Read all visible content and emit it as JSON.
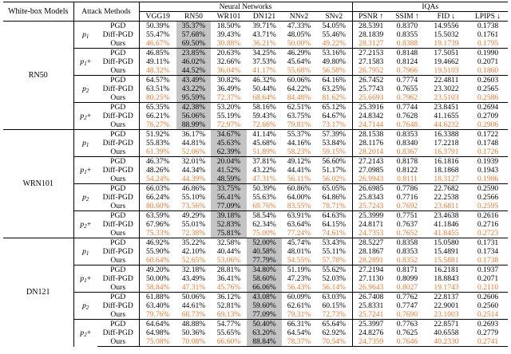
{
  "header": {
    "whitebox_label": "White-box Models",
    "attack_label": "Attack Methods",
    "nn_group": "Neural Networks",
    "iqa_group": "IQAs",
    "columns": [
      "VGG19",
      "RN50",
      "WR101",
      "DN121",
      "NNv2",
      "SNv2",
      "PSNR ↑",
      "SSIM ↑",
      "FID ↓",
      "LPIPS ↓"
    ]
  },
  "groups": [
    {
      "model": "RN50",
      "gray_col": 1,
      "blocks": [
        {
          "pset": "p",
          "sub": "1",
          "plus": "",
          "rows": [
            {
              "method": "PGD",
              "vals": [
                "50.39%",
                "35.37%",
                "18.50%",
                "39.71%",
                "47.33%",
                "54.05%",
                "28.5391",
                "0.8370",
                "14.9556",
                "0.1738"
              ],
              "orange": false
            },
            {
              "method": "Diff-PGD",
              "vals": [
                "55.47%",
                "57.68%",
                "39.43%",
                "43.71%",
                "48.05%",
                "55.46%",
                "28.1839",
                "0.8355",
                "15.5032",
                "0.1761"
              ],
              "orange": false
            },
            {
              "method": "Ours",
              "vals": [
                "46.67%",
                "69.50%",
                "30.88%",
                "36.21%",
                "50.00%",
                "49.22%",
                "28.3127",
                "0.8388",
                "19.1739",
                "0.1795"
              ],
              "orange": true
            }
          ]
        },
        {
          "pset": "p",
          "sub": "1",
          "plus": "+",
          "rows": [
            {
              "method": "PGD",
              "vals": [
                "46.85%",
                "23.85%",
                "20.63%",
                "34.25%",
                "46.29%",
                "53.16%",
                "27.2153",
                "0.8148",
                "17.5051",
                "0.1990"
              ],
              "orange": false
            },
            {
              "method": "Diff-PGD",
              "vals": [
                "49.11%",
                "46.02%",
                "32.66%",
                "37.53%",
                "45.64%",
                "49.80%",
                "27.1583",
                "0.8124",
                "19.4662",
                "0.2071"
              ],
              "orange": false
            },
            {
              "method": "Ours",
              "vals": [
                "48.32%",
                "44.52%",
                "36.04%",
                "41.17%",
                "55.68%",
                "56.58%",
                "26.7952",
                "0.7966",
                "19.5103",
                "0.1860"
              ],
              "orange": true
            }
          ]
        },
        {
          "pset": "p",
          "sub": "2",
          "plus": "",
          "rows": [
            {
              "method": "PGD",
              "vals": [
                "64.57%",
                "43.49%",
                "30.82%",
                "46.32%",
                "60.06%",
                "64.16%",
                "26.7452",
                "0.7774",
                "22.4811",
                "0.2603"
              ],
              "orange": false
            },
            {
              "method": "Diff-PGD",
              "vals": [
                "63.51%",
                "43.22%",
                "36.49%",
                "50.44%",
                "64.22%",
                "63.25%",
                "25.7743",
                "0.7655",
                "23.3022",
                "0.2565"
              ],
              "orange": false
            },
            {
              "method": "Ours",
              "vals": [
                "80.25%",
                "95.59%",
                "72.37%",
                "68.64%",
                "84.48%",
                "81.62%",
                "25.6693",
                "0.7962",
                "23.5103",
                "0.2586"
              ],
              "orange": true
            }
          ]
        },
        {
          "pset": "p",
          "sub": "2",
          "plus": "+",
          "rows": [
            {
              "method": "PGD",
              "vals": [
                "65.35%",
                "42.38%",
                "53.20%",
                "58.16%",
                "62.51%",
                "65.12%",
                "25.3916",
                "0.7744",
                "23.8451",
                "0.2694"
              ],
              "orange": false
            },
            {
              "method": "Diff-PGD",
              "vals": [
                "66.21%",
                "56.06%",
                "55.19%",
                "59.43%",
                "63.75%",
                "64.67%",
                "24.8342",
                "0.7628",
                "41.1655",
                "0.2709"
              ],
              "orange": false
            },
            {
              "method": "Ours",
              "vals": [
                "76.27%",
                "88.99%",
                "72.97%",
                "72.66%",
                "79.81%",
                "73.17%",
                "24.7144",
                "0.7648",
                "44.6232",
                "0.2906"
              ],
              "orange": true
            }
          ]
        }
      ]
    },
    {
      "model": "WRN101",
      "gray_col": 2,
      "blocks": [
        {
          "pset": "p",
          "sub": "1",
          "plus": "",
          "rows": [
            {
              "method": "PGD",
              "vals": [
                "51.92%",
                "36.17%",
                "34.67%",
                "41.14%",
                "55.37%",
                "57.39%",
                "28.1538",
                "0.8353",
                "16.3388",
                "0.1722"
              ],
              "orange": false
            },
            {
              "method": "Diff-PGD",
              "vals": [
                "55.83%",
                "44.81%",
                "45.63%",
                "45.68%",
                "44.16%",
                "53.84%",
                "28.1176",
                "0.8340",
                "17.2218",
                "0.1748"
              ],
              "orange": false
            },
            {
              "method": "Ours",
              "vals": [
                "61.39%",
                "52.06%",
                "62.39%",
                "51.89%",
                "58.23%",
                "59.15%",
                "28.2014",
                "0.8367",
                "16.3791",
                "0.1726"
              ],
              "orange": true
            }
          ]
        },
        {
          "pset": "p",
          "sub": "1",
          "plus": "+",
          "rows": [
            {
              "method": "PGD",
              "vals": [
                "46.37%",
                "32.01%",
                "20.04%",
                "37.81%",
                "49.12%",
                "56.60%",
                "27.2143",
                "0.8178",
                "16.1816",
                "0.1939"
              ],
              "orange": false
            },
            {
              "method": "Diff-PGD",
              "vals": [
                "48.26%",
                "44.34%",
                "41.52%",
                "43.22%",
                "44.41%",
                "51.17%",
                "27.0985",
                "0.8122",
                "18.1868",
                "0.1943"
              ],
              "orange": false
            },
            {
              "method": "Ours",
              "vals": [
                "54.24%",
                "44.39%",
                "48.59%",
                "47.31%",
                "56.11%",
                "56.02%",
                "26.9943",
                "0.8111",
                "18.3127",
                "0.1986"
              ],
              "orange": true
            }
          ]
        },
        {
          "pset": "p",
          "sub": "2",
          "plus": "",
          "rows": [
            {
              "method": "PGD",
              "vals": [
                "66.03%",
                "46.86%",
                "33.75%",
                "50.39%",
                "60.86%",
                "65.05%",
                "26.6985",
                "0.7786",
                "22.7682",
                "0.2590"
              ],
              "orange": false
            },
            {
              "method": "Diff-PGD",
              "vals": [
                "66.24%",
                "55.10%",
                "56.41%",
                "55.63%",
                "64.00%",
                "64.86%",
                "25.8343",
                "0.7716",
                "22.2538",
                "0.2566"
              ],
              "orange": false
            },
            {
              "method": "Ours",
              "vals": [
                "80.60%",
                "73.56%",
                "77.09%",
                "69.76%",
                "83.55%",
                "78.71%",
                "25.7243",
                "0.7692",
                "23.6811",
                "0.2595"
              ],
              "orange": true
            }
          ]
        },
        {
          "pset": "p",
          "sub": "2",
          "plus": "+",
          "rows": [
            {
              "method": "PGD",
              "vals": [
                "63.59%",
                "49.29%",
                "39.18%",
                "58.54%",
                "63.91%",
                "64.63%",
                "25.3999",
                "0.7751",
                "23.4638",
                "0.2616"
              ],
              "orange": false
            },
            {
              "method": "Diff-PGD",
              "vals": [
                "67.96%",
                "55.01%",
                "52.83%",
                "62.34%",
                "63.64%",
                "64.15%",
                "24.8171",
                "0.7637",
                "41.1846",
                "0.2716"
              ],
              "orange": false
            },
            {
              "method": "Ours",
              "vals": [
                "75.33%",
                "72.38%",
                "75.81%",
                "75.00%",
                "77.24%",
                "74.61%",
                "24.7353",
                "0.7652",
                "41.8455",
                "0.2723"
              ],
              "orange": true
            }
          ]
        }
      ]
    },
    {
      "model": "DN121",
      "gray_col": 3,
      "blocks": [
        {
          "pset": "p",
          "sub": "1",
          "plus": "",
          "rows": [
            {
              "method": "PGD",
              "vals": [
                "46.92%",
                "35.22%",
                "32.58%",
                "52.00%",
                "45.74%",
                "53.43%",
                "28.5227",
                "0.8358",
                "15.0580",
                "0.1731"
              ],
              "orange": false
            },
            {
              "method": "Diff-PGD",
              "vals": [
                "55.90%",
                "42.10%",
                "40.44%",
                "40.58%",
                "48.01%",
                "55.11%",
                "28.1867",
                "0.8353",
                "15.4891",
                "0.1734"
              ],
              "orange": false
            },
            {
              "method": "Ours",
              "vals": [
                "60.64%",
                "52.65%",
                "53.06%",
                "77.79%",
                "54.55%",
                "57.78%",
                "28.2891",
                "0.8352",
                "15.5881",
                "0.1738"
              ],
              "orange": true
            }
          ]
        },
        {
          "pset": "p",
          "sub": "1",
          "plus": "+",
          "rows": [
            {
              "method": "PGD",
              "vals": [
                "49.20%",
                "32.18%",
                "28.81%",
                "34.80%",
                "51.19%",
                "55.62%",
                "27.2194",
                "0.8171",
                "16.2181",
                "0.1937"
              ],
              "orange": false
            },
            {
              "method": "Diff-PGD",
              "vals": [
                "50.00%",
                "43.49%",
                "36.41%",
                "58.60%",
                "47.23%",
                "52.03%",
                "27.1130",
                "0.8099",
                "18.8843",
                "0.2071"
              ],
              "orange": false
            },
            {
              "method": "Ours",
              "vals": [
                "58.84%",
                "47.31%",
                "45.76%",
                "66.06%",
                "56.43%",
                "56.14%",
                "26.9643",
                "0.8027",
                "19.1743",
                "0.2110"
              ],
              "orange": true
            }
          ]
        },
        {
          "pset": "p",
          "sub": "2",
          "plus": "",
          "rows": [
            {
              "method": "PGD",
              "vals": [
                "61.88%",
                "50.06%",
                "36.12%",
                "43.08%",
                "60.09%",
                "63.03%",
                "26.7408",
                "0.7762",
                "22.8137",
                "0.2606"
              ],
              "orange": false
            },
            {
              "method": "Diff-PGD",
              "vals": [
                "63.40%",
                "44.61%",
                "52.81%",
                "59.60%",
                "62.61%",
                "60.15%",
                "25.8331",
                "0.7747",
                "22.9001",
                "0.2560"
              ],
              "orange": false
            },
            {
              "method": "Ours",
              "vals": [
                "79.76%",
                "68.73%",
                "69.13%",
                "77.09%",
                "79.31%",
                "72.73%",
                "25.7241",
                "0.7690",
                "23.1003",
                "0.2514"
              ],
              "orange": true
            }
          ]
        },
        {
          "pset": "p",
          "sub": "2",
          "plus": "+",
          "rows": [
            {
              "method": "PGD",
              "vals": [
                "64.64%",
                "48.88%",
                "54.77%",
                "50.40%",
                "66.31%",
                "65.64%",
                "25.3997",
                "0.7763",
                "22.8571",
                "0.2693"
              ],
              "orange": false
            },
            {
              "method": "Diff-PGD",
              "vals": [
                "64.98%",
                "50.36%",
                "55.65%",
                "63.20%",
                "64.54%",
                "62.92%",
                "24.8276",
                "0.7625",
                "40.6558",
                "0.2779"
              ],
              "orange": false
            },
            {
              "method": "Ours",
              "vals": [
                "75.08%",
                "70.08%",
                "66.60%",
                "88.84%",
                "78.37%",
                "70.54%",
                "24.7359",
                "0.7646",
                "40.2330",
                "0.2741"
              ],
              "orange": true
            }
          ]
        }
      ]
    }
  ]
}
